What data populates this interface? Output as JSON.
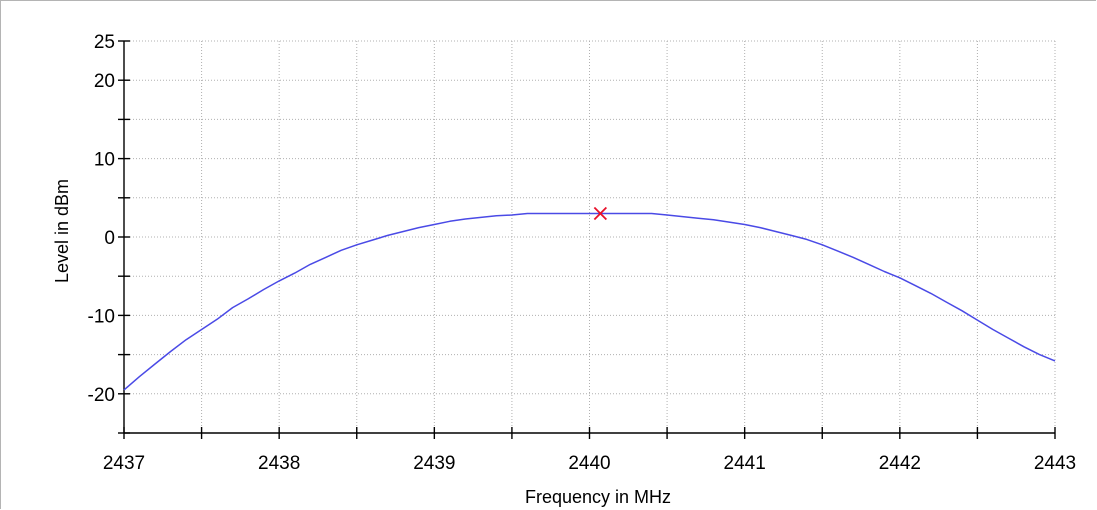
{
  "chart_data": {
    "type": "line",
    "xlabel": "Frequency in MHz",
    "ylabel": "Level in dBm",
    "xlim": [
      2437,
      2443
    ],
    "ylim": [
      -25,
      25
    ],
    "x_ticks": [
      2437,
      2438,
      2439,
      2440,
      2441,
      2442,
      2443
    ],
    "x_tick_labels": [
      "2437",
      "2438",
      "2439",
      "2440",
      "2441",
      "2442",
      "2443"
    ],
    "x_minor_step": 0.5,
    "y_ticks": [
      -20,
      -10,
      0,
      10,
      20,
      25
    ],
    "y_tick_labels": [
      "-20",
      "-10",
      "0",
      "10",
      "20",
      "25"
    ],
    "y_minor_step": 5,
    "grid": true,
    "series_color": "#4a4ae6",
    "marker_color": "#e8102a",
    "series": [
      {
        "x": [
          2437.0,
          2437.1,
          2437.2,
          2437.3,
          2437.4,
          2437.5,
          2437.6,
          2437.7,
          2437.8,
          2437.9,
          2438.0,
          2438.1,
          2438.2,
          2438.3,
          2438.4,
          2438.5,
          2438.6,
          2438.7,
          2438.8,
          2438.9,
          2439.0,
          2439.1,
          2439.2,
          2439.3,
          2439.4,
          2439.5,
          2439.6,
          2439.7,
          2439.8,
          2439.9,
          2440.0,
          2440.1,
          2440.2,
          2440.3,
          2440.4,
          2440.5,
          2440.6,
          2440.7,
          2440.8,
          2440.9,
          2441.0,
          2441.1,
          2441.2,
          2441.3,
          2441.4,
          2441.5,
          2441.6,
          2441.7,
          2441.8,
          2441.9,
          2442.0,
          2442.1,
          2442.2,
          2442.3,
          2442.4,
          2442.5,
          2442.6,
          2442.7,
          2442.8,
          2442.9,
          2443.0
        ],
        "values": [
          -19.5,
          -17.8,
          -16.2,
          -14.6,
          -13.1,
          -11.8,
          -10.5,
          -9.0,
          -7.9,
          -6.7,
          -5.6,
          -4.6,
          -3.5,
          -2.6,
          -1.7,
          -1.0,
          -0.4,
          0.2,
          0.7,
          1.2,
          1.6,
          2.0,
          2.3,
          2.5,
          2.7,
          2.8,
          3.0,
          3.0,
          3.0,
          3.0,
          3.0,
          3.0,
          3.0,
          3.0,
          3.0,
          2.8,
          2.6,
          2.4,
          2.2,
          1.9,
          1.6,
          1.2,
          0.7,
          0.2,
          -0.3,
          -1.0,
          -1.8,
          -2.6,
          -3.5,
          -4.4,
          -5.2,
          -6.2,
          -7.2,
          -8.3,
          -9.4,
          -10.6,
          -11.8,
          -12.9,
          -14.0,
          -15.0,
          -15.8
        ]
      }
    ],
    "marker": {
      "x": 2440.07,
      "y": 3.0
    }
  }
}
